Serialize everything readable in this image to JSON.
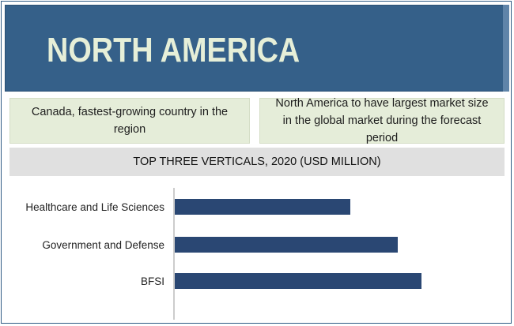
{
  "banner": {
    "title": "NORTH AMERICA"
  },
  "cards": [
    {
      "text": "Canada, fastest-growing country in the region"
    },
    {
      "text": "North America to have largest market size in the global market during the forecast period"
    }
  ],
  "colors": {
    "banner": "#356089",
    "card": "#e5edd9",
    "subhead": "#e0e0e0",
    "bar": "#2a4773"
  },
  "chart_data": {
    "type": "bar",
    "orientation": "horizontal",
    "title": "TOP THREE VERTICALS, 2020 (USD MILLION)",
    "categories": [
      "Healthcare and Life Sciences",
      "Government and Defense",
      "BFSI"
    ],
    "values": [
      222,
      282,
      312
    ],
    "xlim": [
      0,
      420
    ],
    "grid": false,
    "axis_ticks_shown": false
  }
}
